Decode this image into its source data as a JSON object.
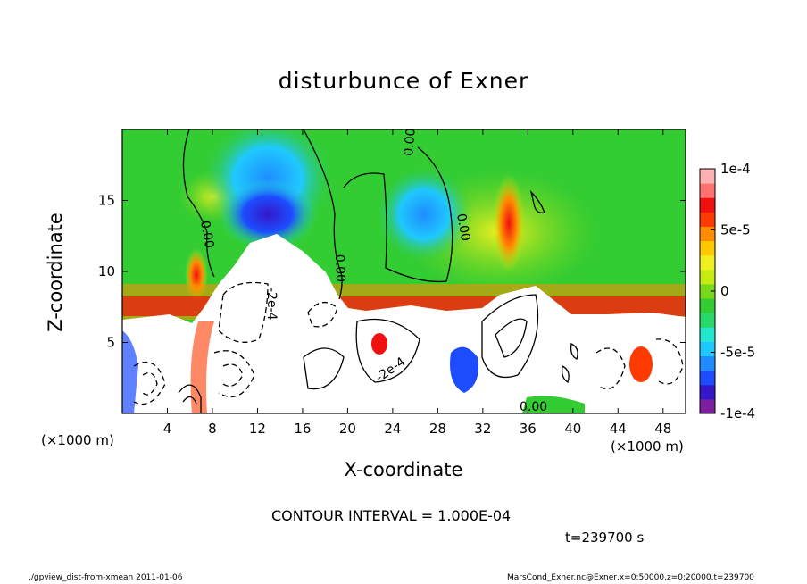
{
  "title": "disturbunce of Exner",
  "chart_data": {
    "type": "heatmap",
    "title": "disturbunce of Exner",
    "xlabel": "X-coordinate",
    "ylabel": "Z-coordinate",
    "x_unit": "(×1000 m)",
    "xlim": [
      0,
      50
    ],
    "ylim": [
      0,
      20
    ],
    "x_ticks": [
      4,
      8,
      12,
      16,
      20,
      24,
      28,
      32,
      36,
      40,
      44,
      48
    ],
    "y_ticks": [
      5,
      10,
      15
    ],
    "colorbar": {
      "range": [
        -0.0001,
        0.0001
      ],
      "tick_labels": [
        "1e-4",
        "5e-5",
        "0",
        "-5e-5",
        "-1e-4"
      ],
      "colors": [
        "#7a1fa0",
        "#3418c8",
        "#1d4cff",
        "#1e8cff",
        "#1fc8ff",
        "#22e6d0",
        "#2ad86a",
        "#33cc33",
        "#7ad81a",
        "#c4ec10",
        "#f0f020",
        "#ffc800",
        "#ff8c00",
        "#ff3a00",
        "#f01010",
        "#ff7070",
        "#ffb0b0"
      ]
    },
    "contour_labels": [
      "0.00",
      "0.00",
      "0.00",
      "0.00",
      "-2e-4",
      "-2e-4",
      "0.00"
    ],
    "contour_interval_text": "CONTOUR INTERVAL = 1.000E-04",
    "time": "t=239700 s"
  },
  "footer": {
    "left": "./gpview_dist-from-xmean  2011-01-06",
    "right": "MarsCond_Exner.nc@Exner,x=0:50000,z=0:20000,t=239700"
  }
}
